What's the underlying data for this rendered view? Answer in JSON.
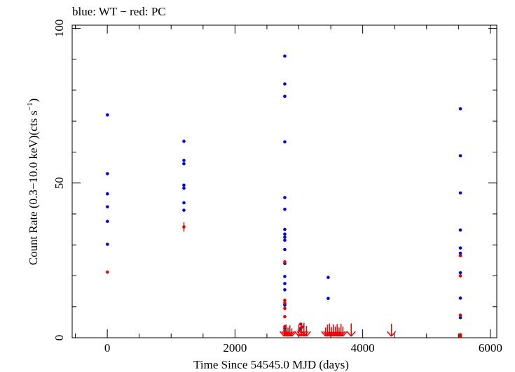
{
  "chart_data": {
    "type": "scatter",
    "title": "blue: WT − red: PC",
    "xlabel": "Time Since 54545.0 MJD (days)",
    "ylabel_main": "Count Rate (0.3−10.0 keV)(cts s",
    "ylabel_sup": "−1",
    "ylabel_close": ")",
    "xlim": [
      -550,
      6100
    ],
    "ylim": [
      0,
      101
    ],
    "xticks": [
      0,
      2000,
      4000,
      6000
    ],
    "yticks": [
      0,
      50,
      100
    ],
    "grid": false,
    "legend": "none",
    "series": [
      {
        "name": "WT",
        "color": "#0000ee",
        "points": [
          {
            "x": 2,
            "y": 72
          },
          {
            "x": 2,
            "y": 53
          },
          {
            "x": 2,
            "y": 46.5
          },
          {
            "x": 2,
            "y": 42.3
          },
          {
            "x": 2,
            "y": 37.6
          },
          {
            "x": 2,
            "y": 30.2
          },
          {
            "x": 1200,
            "y": 63.5
          },
          {
            "x": 1200,
            "y": 57.3
          },
          {
            "x": 1200,
            "y": 56.2
          },
          {
            "x": 1200,
            "y": 49.3
          },
          {
            "x": 1200,
            "y": 48.3
          },
          {
            "x": 1200,
            "y": 43.6
          },
          {
            "x": 1200,
            "y": 41.2
          },
          {
            "x": 2780,
            "y": 91
          },
          {
            "x": 2780,
            "y": 82
          },
          {
            "x": 2780,
            "y": 78
          },
          {
            "x": 2780,
            "y": 63.3
          },
          {
            "x": 2780,
            "y": 45.3
          },
          {
            "x": 2780,
            "y": 41.5
          },
          {
            "x": 2780,
            "y": 35
          },
          {
            "x": 2780,
            "y": 33.5
          },
          {
            "x": 2780,
            "y": 32.5
          },
          {
            "x": 2780,
            "y": 31.5
          },
          {
            "x": 2780,
            "y": 28.5
          },
          {
            "x": 2780,
            "y": 24
          },
          {
            "x": 2780,
            "y": 19.8
          },
          {
            "x": 2780,
            "y": 17.5
          },
          {
            "x": 2780,
            "y": 15.5
          },
          {
            "x": 2780,
            "y": 10.8
          },
          {
            "x": 2780,
            "y": 10.5
          },
          {
            "x": 2780,
            "y": 3
          },
          {
            "x": 3030,
            "y": 3
          },
          {
            "x": 3460,
            "y": 19.5
          },
          {
            "x": 3460,
            "y": 12.7
          },
          {
            "x": 5530,
            "y": 74
          },
          {
            "x": 5530,
            "y": 58.8
          },
          {
            "x": 5530,
            "y": 46.8
          },
          {
            "x": 5530,
            "y": 34.8
          },
          {
            "x": 5530,
            "y": 29
          },
          {
            "x": 5530,
            "y": 27.3
          },
          {
            "x": 5530,
            "y": 21
          },
          {
            "x": 5530,
            "y": 12.8
          },
          {
            "x": 5530,
            "y": 6.5
          }
        ]
      },
      {
        "name": "PC",
        "color": "#ee0000",
        "points": [
          {
            "x": 2,
            "y": 21.2,
            "err": 0.5
          },
          {
            "x": 1200,
            "y": 35.8,
            "err": 1.5
          },
          {
            "x": 2780,
            "y": 24.5,
            "err": 0.6
          },
          {
            "x": 2780,
            "y": 12.1,
            "err": 0.5
          },
          {
            "x": 2780,
            "y": 11.2,
            "err": 0.5
          },
          {
            "x": 2780,
            "y": 9.5,
            "err": 0.6
          },
          {
            "x": 2780,
            "y": 6.8,
            "err": 0.4
          },
          {
            "x": 2780,
            "y": 3.6,
            "err": 0.3
          },
          {
            "x": 2780,
            "y": 2.2,
            "err": 0.3
          },
          {
            "x": 2790,
            "y": 1.5,
            "err": 0.3
          },
          {
            "x": 3030,
            "y": 4.4,
            "err": 0.4
          },
          {
            "x": 3010,
            "y": 2.4,
            "err": 0.3
          },
          {
            "x": 3050,
            "y": 3.5,
            "err": 0.3
          },
          {
            "x": 5530,
            "y": 26.5,
            "err": 0.5
          },
          {
            "x": 5530,
            "y": 20,
            "err": 0.5
          },
          {
            "x": 5530,
            "y": 7.3,
            "err": 0.5
          },
          {
            "x": 5530,
            "y": 1,
            "err": 0.3
          },
          {
            "x": 5530,
            "y": 0.3,
            "err": 0.2
          }
        ],
        "upper_limits": [
          {
            "x": 2770,
            "y": 1.8
          },
          {
            "x": 2800,
            "y": 2.5
          },
          {
            "x": 2830,
            "y": 1.5
          },
          {
            "x": 2860,
            "y": 2.2
          },
          {
            "x": 2890,
            "y": 1.2
          },
          {
            "x": 3000,
            "y": 2.5
          },
          {
            "x": 3040,
            "y": 1.8
          },
          {
            "x": 3080,
            "y": 3.0
          },
          {
            "x": 3120,
            "y": 2.0
          },
          {
            "x": 3420,
            "y": 1.5
          },
          {
            "x": 3450,
            "y": 2.4
          },
          {
            "x": 3480,
            "y": 2.8
          },
          {
            "x": 3510,
            "y": 1.6
          },
          {
            "x": 3540,
            "y": 2.5
          },
          {
            "x": 3570,
            "y": 1.8
          },
          {
            "x": 3600,
            "y": 2.6
          },
          {
            "x": 3630,
            "y": 1.5
          },
          {
            "x": 3660,
            "y": 2.7
          },
          {
            "x": 3690,
            "y": 1.8
          },
          {
            "x": 3820,
            "y": 2.8
          },
          {
            "x": 4450,
            "y": 2.7
          }
        ]
      }
    ]
  }
}
